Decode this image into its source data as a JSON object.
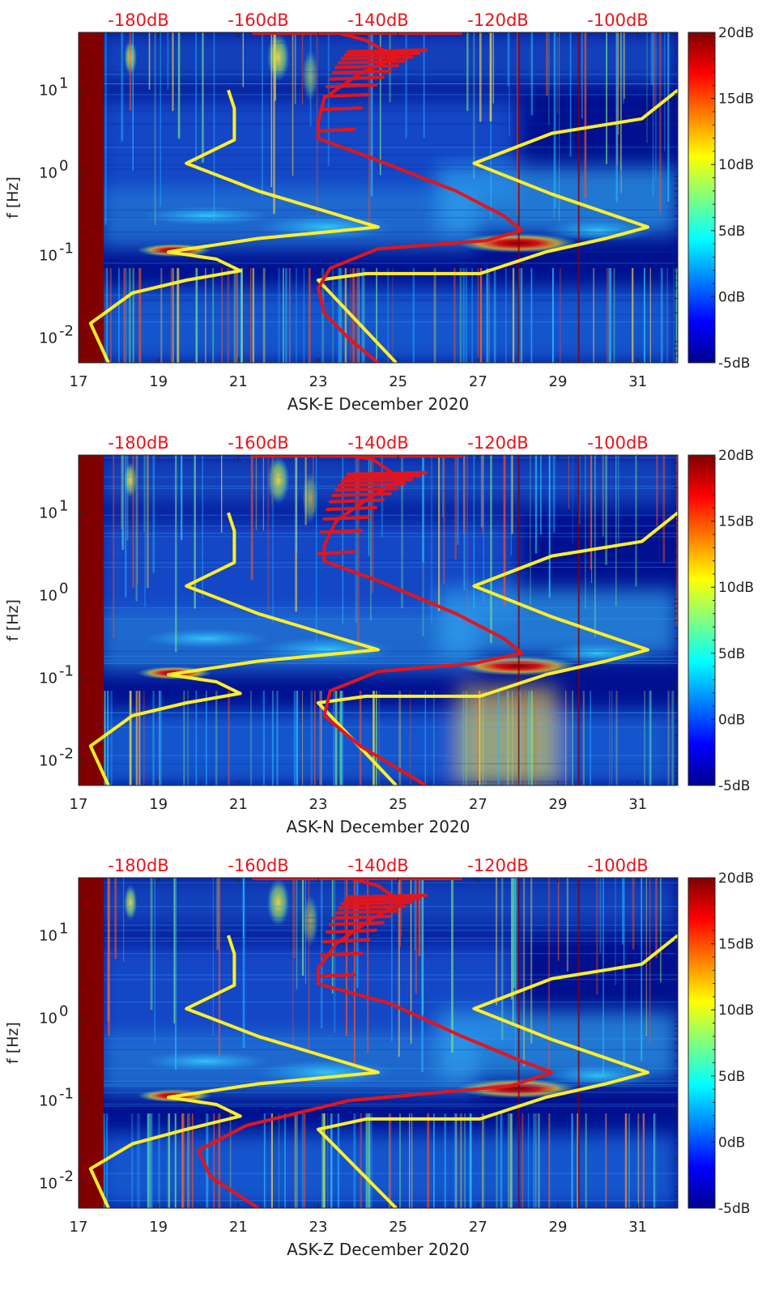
{
  "colors": {
    "top_label": "#e8141b",
    "red_curve": "#e3151b",
    "yellow_curve": "#ffee2a",
    "left_band": "#800000",
    "bg_deep": "#00108f",
    "bg_mid": "#1858d8"
  },
  "chart_data": [
    {
      "type": "heatmap",
      "title": "",
      "xlabel": "ASK-E December 2020",
      "ylabel": "f [Hz]",
      "xlim": [
        17,
        32
      ],
      "ylim": [
        0.005,
        50
      ],
      "yscale": "log",
      "x_ticks": [
        "17",
        "19",
        "21",
        "23",
        "25",
        "27",
        "29",
        "31"
      ],
      "top_ticks": [
        "-180dB",
        "-160dB",
        "-140dB",
        "-120dB",
        "-100dB"
      ],
      "colorbar": {
        "range": [
          -5,
          20
        ],
        "ticks": [
          "20dB",
          "15dB",
          "10dB",
          "5dB",
          "0dB",
          "-5dB"
        ]
      },
      "red_curve": [
        [
          -147,
          50
        ],
        [
          -142,
          40
        ],
        [
          -137,
          25
        ],
        [
          -143,
          16
        ],
        [
          -149,
          8
        ],
        [
          -150,
          4
        ],
        [
          -150,
          2.6
        ],
        [
          -141,
          1.5
        ],
        [
          -127,
          0.6
        ],
        [
          -119,
          0.3
        ],
        [
          -116,
          0.2
        ],
        [
          -122,
          0.15
        ],
        [
          -140,
          0.12
        ],
        [
          -148,
          0.07
        ],
        [
          -150,
          0.04
        ],
        [
          -149,
          0.02
        ],
        [
          -145,
          0.01
        ],
        [
          -140,
          0.005
        ]
      ],
      "yellow_curves": [
        [
          [
            -185,
            0.005
          ],
          [
            -188,
            0.015
          ],
          [
            -181,
            0.035
          ],
          [
            -172,
            0.05
          ],
          [
            -163,
            0.065
          ],
          [
            -167,
            0.09
          ],
          [
            -175,
            0.11
          ],
          [
            -160,
            0.16
          ],
          [
            -140,
            0.22
          ],
          [
            -160,
            0.6
          ],
          [
            -172,
            1.3
          ],
          [
            -164,
            2.5
          ],
          [
            -164,
            6
          ],
          [
            -165,
            10
          ]
        ],
        [
          [
            -137,
            0.005
          ],
          [
            -150,
            0.05
          ],
          [
            -142,
            0.06
          ],
          [
            -123,
            0.06
          ],
          [
            -112,
            0.11
          ],
          [
            -102,
            0.16
          ],
          [
            -95,
            0.22
          ],
          [
            -111,
            0.55
          ],
          [
            -124,
            1.3
          ],
          [
            -111,
            3
          ],
          [
            -96,
            4.5
          ],
          [
            -90,
            10
          ]
        ]
      ]
    },
    {
      "type": "heatmap",
      "title": "",
      "xlabel": "ASK-N December 2020",
      "ylabel": "f [Hz]",
      "xlim": [
        17,
        32
      ],
      "ylim": [
        0.005,
        50
      ],
      "yscale": "log",
      "x_ticks": [
        "17",
        "19",
        "21",
        "23",
        "25",
        "27",
        "29",
        "31"
      ],
      "top_ticks": [
        "-180dB",
        "-160dB",
        "-140dB",
        "-120dB",
        "-100dB"
      ],
      "colorbar": {
        "range": [
          -5,
          20
        ],
        "ticks": [
          "20dB",
          "15dB",
          "10dB",
          "5dB",
          "0dB",
          "-5dB"
        ]
      },
      "red_curve": [
        [
          -146,
          50
        ],
        [
          -141,
          45
        ],
        [
          -136,
          25
        ],
        [
          -141,
          16
        ],
        [
          -147,
          8
        ],
        [
          -149,
          4
        ],
        [
          -149,
          2.6
        ],
        [
          -140,
          1.5
        ],
        [
          -127,
          0.6
        ],
        [
          -119,
          0.3
        ],
        [
          -116,
          0.2
        ],
        [
          -124,
          0.15
        ],
        [
          -140,
          0.12
        ],
        [
          -148,
          0.07
        ],
        [
          -149,
          0.035
        ],
        [
          -143,
          0.015
        ],
        [
          -132,
          0.005
        ]
      ],
      "yellow_curves": [
        [
          [
            -185,
            0.005
          ],
          [
            -188,
            0.015
          ],
          [
            -181,
            0.035
          ],
          [
            -172,
            0.05
          ],
          [
            -163,
            0.065
          ],
          [
            -167,
            0.09
          ],
          [
            -175,
            0.11
          ],
          [
            -160,
            0.16
          ],
          [
            -140,
            0.22
          ],
          [
            -160,
            0.6
          ],
          [
            -172,
            1.3
          ],
          [
            -164,
            2.5
          ],
          [
            -164,
            6
          ],
          [
            -165,
            10
          ]
        ],
        [
          [
            -137,
            0.005
          ],
          [
            -150,
            0.05
          ],
          [
            -142,
            0.06
          ],
          [
            -123,
            0.06
          ],
          [
            -112,
            0.11
          ],
          [
            -102,
            0.16
          ],
          [
            -95,
            0.22
          ],
          [
            -111,
            0.55
          ],
          [
            -124,
            1.3
          ],
          [
            -111,
            3
          ],
          [
            -96,
            4.5
          ],
          [
            -90,
            10
          ]
        ]
      ]
    },
    {
      "type": "heatmap",
      "title": "",
      "xlabel": "ASK-Z December 2020",
      "ylabel": "f [Hz]",
      "xlim": [
        17,
        32
      ],
      "ylim": [
        0.005,
        50
      ],
      "yscale": "log",
      "x_ticks": [
        "17",
        "19",
        "21",
        "23",
        "25",
        "27",
        "29",
        "31"
      ],
      "top_ticks": [
        "-180dB",
        "-160dB",
        "-140dB",
        "-120dB",
        "-100dB"
      ],
      "colorbar": {
        "range": [
          -5,
          20
        ],
        "ticks": [
          "20dB",
          "15dB",
          "10dB",
          "5dB",
          "0dB",
          "-5dB"
        ]
      },
      "red_curve": [
        [
          -145,
          50
        ],
        [
          -140,
          40
        ],
        [
          -136,
          25
        ],
        [
          -141,
          16
        ],
        [
          -147,
          8
        ],
        [
          -150,
          4
        ],
        [
          -150,
          2.6
        ],
        [
          -138,
          1.5
        ],
        [
          -126,
          0.6
        ],
        [
          -116,
          0.3
        ],
        [
          -111,
          0.22
        ],
        [
          -118,
          0.15
        ],
        [
          -145,
          0.1
        ],
        [
          -162,
          0.05
        ],
        [
          -170,
          0.025
        ],
        [
          -168,
          0.012
        ],
        [
          -160,
          0.005
        ]
      ],
      "yellow_curves": [
        [
          [
            -185,
            0.005
          ],
          [
            -188,
            0.015
          ],
          [
            -181,
            0.03
          ],
          [
            -172,
            0.045
          ],
          [
            -163,
            0.065
          ],
          [
            -167,
            0.09
          ],
          [
            -175,
            0.11
          ],
          [
            -160,
            0.16
          ],
          [
            -140,
            0.22
          ],
          [
            -160,
            0.6
          ],
          [
            -172,
            1.3
          ],
          [
            -164,
            2.5
          ],
          [
            -164,
            6
          ],
          [
            -165,
            10
          ]
        ],
        [
          [
            -137,
            0.005
          ],
          [
            -150,
            0.045
          ],
          [
            -142,
            0.06
          ],
          [
            -123,
            0.06
          ],
          [
            -112,
            0.11
          ],
          [
            -102,
            0.16
          ],
          [
            -95,
            0.22
          ],
          [
            -111,
            0.55
          ],
          [
            -124,
            1.3
          ],
          [
            -111,
            3
          ],
          [
            -96,
            4.5
          ],
          [
            -90,
            10
          ]
        ]
      ]
    }
  ]
}
